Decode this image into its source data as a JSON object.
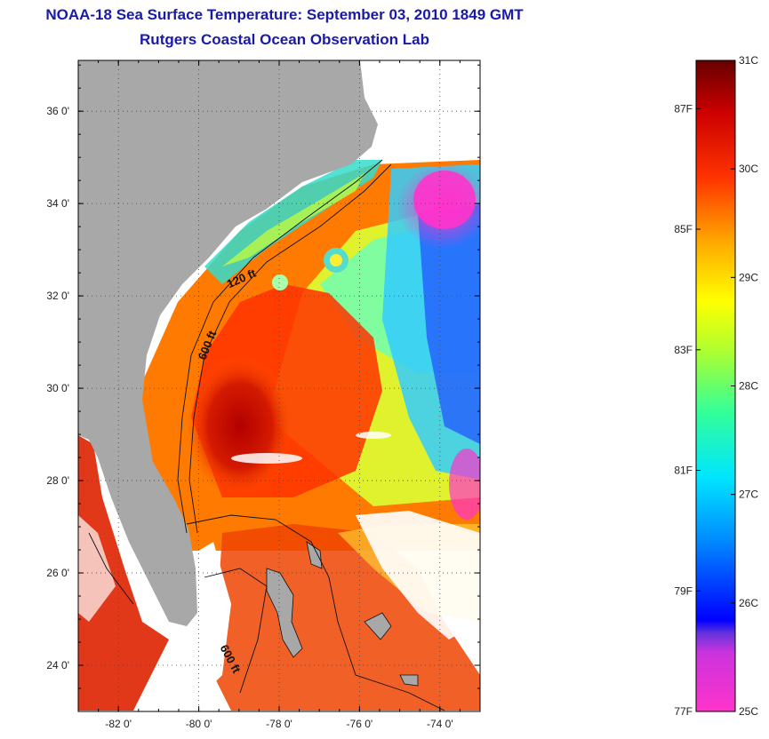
{
  "header": {
    "title": "NOAA-18 Sea Surface Temperature:  September 03, 2010 1849 GMT",
    "subtitle": "Rutgers Coastal Ocean Observation Lab"
  },
  "map": {
    "lon_range": [
      -83.0,
      -73.0
    ],
    "lat_range": [
      23.0,
      37.1
    ],
    "lon_ticks": [
      -82,
      -80,
      -78,
      -76,
      -74
    ],
    "lon_tick_labels": [
      "-82 0'",
      "-80 0'",
      "-78 0'",
      "-76 0'",
      "-74 0'"
    ],
    "lat_ticks": [
      24,
      26,
      28,
      30,
      32,
      34,
      36
    ],
    "lat_tick_labels": [
      "24 0'",
      "26 0'",
      "28 0'",
      "30 0'",
      "32 0'",
      "34 0'",
      "36 0'"
    ],
    "grid": "dotted",
    "land_color": "#a8a8a8",
    "contour_labels": [
      {
        "text": "120 ft",
        "lon": -78.9,
        "lat": 32.3,
        "rotate": -24
      },
      {
        "text": "600 ft",
        "lon": -79.7,
        "lat": 30.9,
        "rotate": -68
      },
      {
        "text": "600 ft",
        "lon": -79.3,
        "lat": 24.1,
        "rotate": 62
      }
    ]
  },
  "colorbar": {
    "c_labels": [
      "31C",
      "30C",
      "29C",
      "28C",
      "27C",
      "26C",
      "25C"
    ],
    "f_labels": [
      "87F",
      "85F",
      "83F",
      "81F",
      "79F",
      "77F"
    ],
    "c_values": [
      31,
      30,
      29,
      28,
      27,
      26,
      25
    ],
    "f_values": [
      87,
      85,
      83,
      81,
      79,
      77
    ],
    "range_c": [
      25,
      31
    ],
    "colors": [
      "#ff33cc",
      "#9933cc",
      "#0000ff",
      "#0099ff",
      "#00ffff",
      "#00ff66",
      "#ffff00",
      "#ffaa00",
      "#ff3300",
      "#aa0000",
      "#6b0000"
    ]
  }
}
